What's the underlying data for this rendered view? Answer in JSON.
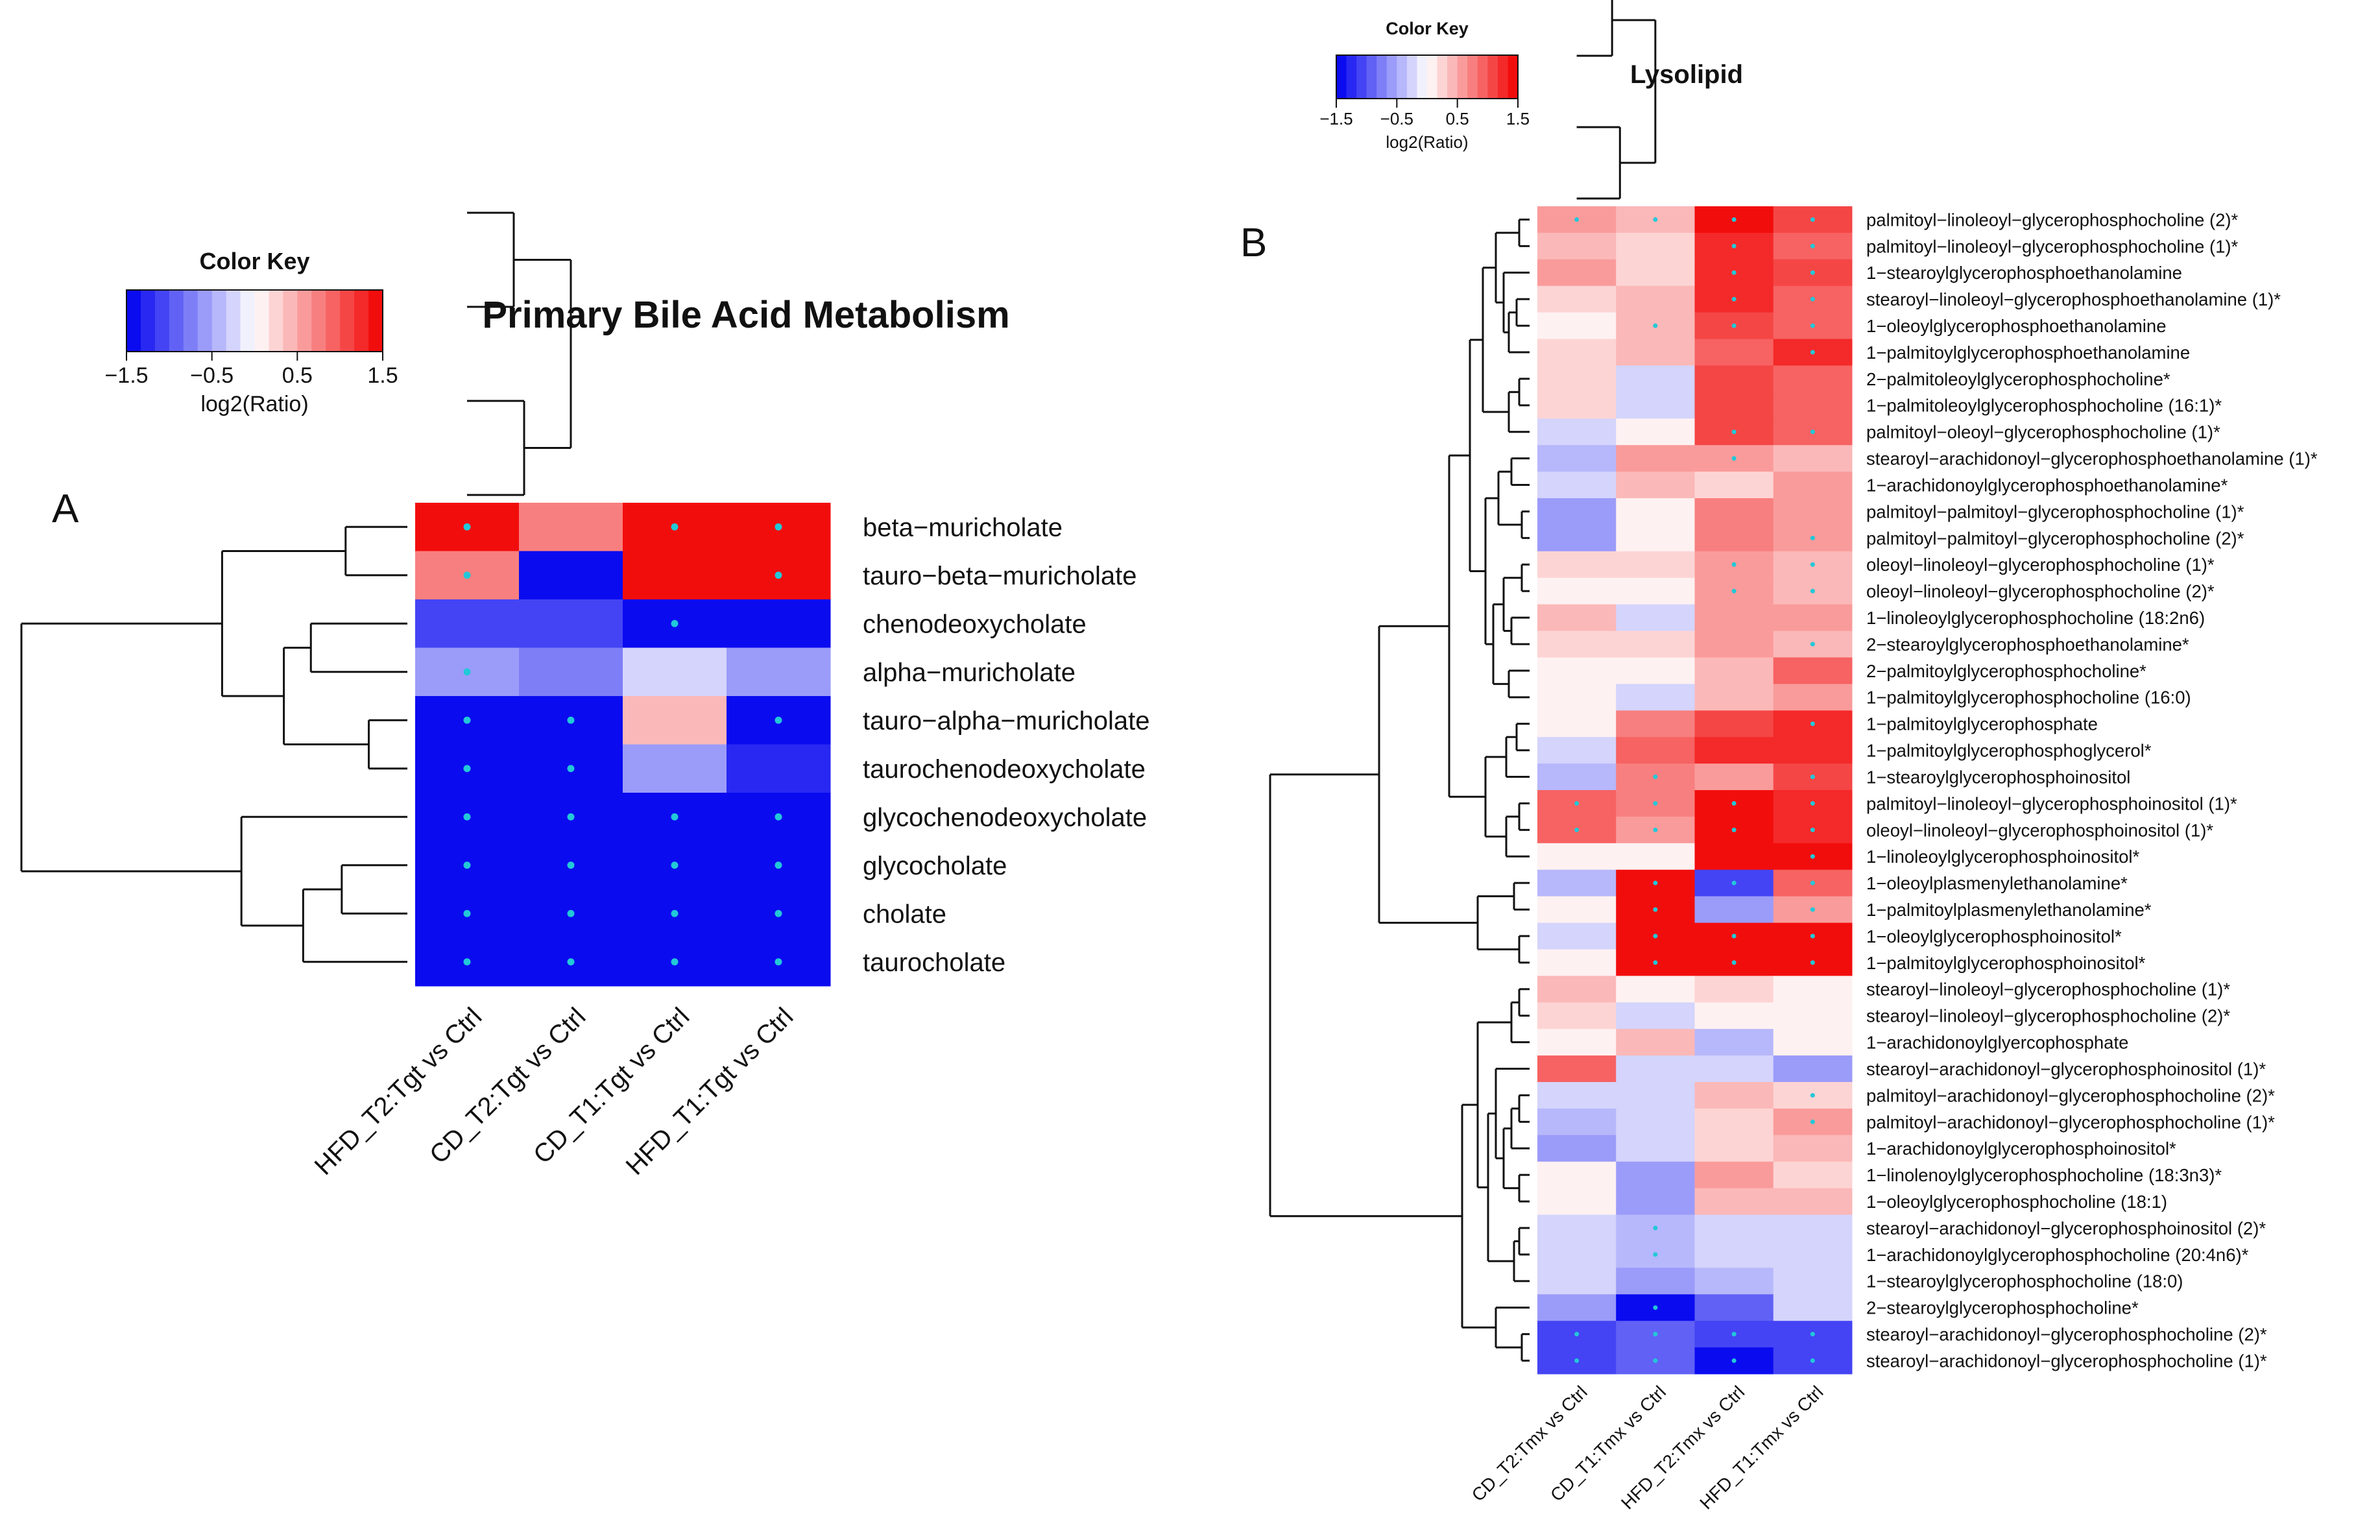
{
  "chart_data": [
    {
      "panel": "A",
      "type": "heatmap",
      "title": "Primary Bile Acid Metabolism",
      "color_key": {
        "title": "Color Key",
        "label": "log2(Ratio)",
        "ticks": [
          "−1.5",
          "−0.5",
          "0.5",
          "1.5"
        ],
        "range": [
          -1.5,
          1.5
        ]
      },
      "columns": [
        "HFD_T2:Tgt vs Ctrl",
        "CD_T2:Tgt vs Ctrl",
        "CD_T1:Tgt vs Ctrl",
        "HFD_T1:Tgt vs Ctrl"
      ],
      "rows": [
        "beta−muricholate",
        "tauro−beta−muricholate",
        "chenodeoxycholate",
        "alpha−muricholate",
        "tauro−alpha−muricholate",
        "taurochenodeoxycholate",
        "glycochenodeoxycholate",
        "glycocholate",
        "cholate",
        "taurocholate"
      ],
      "values": [
        [
          1.5,
          0.8,
          1.5,
          1.5
        ],
        [
          0.8,
          -1.5,
          1.5,
          1.5
        ],
        [
          -1.1,
          -1.1,
          -1.5,
          -1.5
        ],
        [
          -0.6,
          -0.8,
          -0.2,
          -0.6
        ],
        [
          -1.5,
          -1.5,
          0.5,
          -1.5
        ],
        [
          -1.5,
          -1.5,
          -0.6,
          -1.3
        ],
        [
          -1.5,
          -1.5,
          -1.5,
          -1.5
        ],
        [
          -1.5,
          -1.5,
          -1.5,
          -1.5
        ],
        [
          -1.5,
          -1.5,
          -1.5,
          -1.5
        ],
        [
          -1.5,
          -1.5,
          -1.5,
          -1.5
        ]
      ],
      "significant": [
        [
          1,
          0,
          1,
          1
        ],
        [
          1,
          0,
          0,
          1
        ],
        [
          0,
          0,
          1,
          0
        ],
        [
          1,
          0,
          0,
          0
        ],
        [
          1,
          1,
          0,
          1
        ],
        [
          1,
          1,
          0,
          0
        ],
        [
          1,
          1,
          1,
          1
        ],
        [
          1,
          1,
          1,
          1
        ],
        [
          1,
          1,
          1,
          1
        ],
        [
          1,
          1,
          1,
          1
        ]
      ]
    },
    {
      "panel": "B",
      "type": "heatmap",
      "title": "Lysolipid",
      "color_key": {
        "title": "Color Key",
        "label": "log2(Ratio)",
        "ticks": [
          "−1.5",
          "−0.5",
          "0.5",
          "1.5"
        ],
        "range": [
          -1.5,
          1.5
        ]
      },
      "columns": [
        "CD_T2:Tmx vs Ctrl",
        "CD_T1:Tmx vs Ctrl",
        "HFD_T2:Tmx vs Ctrl",
        "HFD_T1:Tmx vs Ctrl"
      ],
      "rows": [
        "palmitoyl−linoleoyl−glycerophosphocholine (2)*",
        "palmitoyl−linoleoyl−glycerophosphocholine (1)*",
        "1−stearoylglycerophosphoethanolamine",
        "stearoyl−linoleoyl−glycerophosphoethanolamine (1)*",
        "1−oleoylglycerophosphoethanolamine",
        "1−palmitoylglycerophosphoethanolamine",
        "2−palmitoleoylglycerophosphocholine*",
        "1−palmitoleoylglycerophosphocholine (16:1)*",
        "palmitoyl−oleoyl−glycerophosphocholine (1)*",
        "stearoyl−arachidonoyl−glycerophosphoethanolamine (1)*",
        "1−arachidonoylglycerophosphoethanolamine*",
        "palmitoyl−palmitoyl−glycerophosphocholine (1)*",
        "palmitoyl−palmitoyl−glycerophosphocholine (2)*",
        "oleoyl−linoleoyl−glycerophosphocholine (1)*",
        "oleoyl−linoleoyl−glycerophosphocholine (2)*",
        "1−linoleoylglycerophosphocholine (18:2n6)",
        "2−stearoylglycerophosphoethanolamine*",
        "2−palmitoylglycerophosphocholine*",
        "1−palmitoylglycerophosphocholine (16:0)",
        "1−palmitoylglycerophosphate",
        "1−palmitoylglycerophosphoglycerol*",
        "1−stearoylglycerophosphoinositol",
        "palmitoyl−linoleoyl−glycerophosphoinositol (1)*",
        "oleoyl−linoleoyl−glycerophosphoinositol (1)*",
        "1−linoleoylglycerophosphoinositol*",
        "1−oleoylplasmenylethanolamine*",
        "1−palmitoylplasmenylethanolamine*",
        "1−oleoylglycerophosphoinositol*",
        "1−palmitoylglycerophosphoinositol*",
        "stearoyl−linoleoyl−glycerophosphocholine (1)*",
        "stearoyl−linoleoyl−glycerophosphocholine (2)*",
        "1−arachidonoylglyercophosphate",
        "stearoyl−arachidonoyl−glycerophosphoinositol (1)*",
        "palmitoyl−arachidonoyl−glycerophosphocholine (2)*",
        "palmitoyl−arachidonoyl−glycerophosphocholine (1)*",
        "1−arachidonoylglycerophosphoinositol*",
        "1−linolenoylglycerophosphocholine (18:3n3)*",
        "1−oleoylglycerophosphocholine (18:1)",
        "stearoyl−arachidonoyl−glycerophosphoinositol (2)*",
        "1−arachidonoylglycerophosphocholine (20:4n6)*",
        "1−stearoylglycerophosphocholine (18:0)",
        "2−stearoylglycerophosphocholine*",
        "stearoyl−arachidonoyl−glycerophosphocholine (2)*",
        "stearoyl−arachidonoyl−glycerophosphocholine (1)*"
      ],
      "values": [
        [
          0.6,
          0.4,
          1.5,
          1.1
        ],
        [
          0.4,
          0.3,
          1.3,
          1.0
        ],
        [
          0.7,
          0.2,
          1.4,
          1.2
        ],
        [
          0.2,
          0.4,
          1.3,
          0.9
        ],
        [
          0.0,
          0.4,
          1.2,
          0.9
        ],
        [
          0.2,
          0.4,
          1.0,
          1.3
        ],
        [
          0.2,
          -0.2,
          1.2,
          0.9
        ],
        [
          0.2,
          -0.2,
          1.2,
          0.9
        ],
        [
          -0.3,
          0.0,
          1.2,
          0.9
        ],
        [
          -0.4,
          0.6,
          0.6,
          0.5
        ],
        [
          -0.2,
          0.5,
          0.3,
          0.6
        ],
        [
          -0.7,
          0.0,
          0.8,
          0.6
        ],
        [
          -0.7,
          0.0,
          0.8,
          0.6
        ],
        [
          0.2,
          0.2,
          0.6,
          0.5
        ],
        [
          0.1,
          0.1,
          0.6,
          0.5
        ],
        [
          0.4,
          -0.2,
          0.7,
          0.6
        ],
        [
          0.2,
          0.2,
          0.6,
          0.5
        ],
        [
          0.0,
          0.0,
          0.5,
          0.9
        ],
        [
          0.0,
          -0.2,
          0.4,
          0.7
        ],
        [
          0.0,
          0.8,
          1.1,
          1.3
        ],
        [
          -0.2,
          0.9,
          1.3,
          1.4
        ],
        [
          -0.5,
          0.8,
          0.6,
          1.2
        ],
        [
          1.0,
          0.8,
          1.5,
          1.3
        ],
        [
          1.0,
          0.7,
          1.5,
          1.3
        ],
        [
          0.0,
          0.0,
          1.5,
          1.5
        ],
        [
          -0.4,
          1.5,
          -1.2,
          1.0
        ],
        [
          0.0,
          1.5,
          -0.6,
          0.7
        ],
        [
          -0.2,
          1.5,
          1.5,
          1.5
        ],
        [
          0.0,
          1.5,
          1.5,
          1.5
        ],
        [
          0.4,
          0.0,
          0.2,
          0.0
        ],
        [
          0.2,
          -0.2,
          0.0,
          0.0
        ],
        [
          0.0,
          0.4,
          -0.4,
          0.0
        ],
        [
          0.9,
          -0.2,
          -0.2,
          -0.6
        ],
        [
          -0.2,
          -0.2,
          0.4,
          0.2
        ],
        [
          -0.4,
          -0.2,
          0.3,
          0.7
        ],
        [
          -0.6,
          -0.3,
          0.3,
          0.5
        ],
        [
          0.0,
          -0.6,
          0.7,
          0.3
        ],
        [
          0.0,
          -0.6,
          0.5,
          0.4
        ],
        [
          -0.2,
          -0.4,
          -0.2,
          -0.2
        ],
        [
          -0.2,
          -0.4,
          -0.3,
          -0.2
        ],
        [
          -0.3,
          -0.6,
          -0.4,
          -0.2
        ],
        [
          -0.6,
          -1.5,
          -0.9,
          -0.2
        ],
        [
          -1.1,
          -1.0,
          -1.1,
          -1.2
        ],
        [
          -1.1,
          -1.0,
          -1.5,
          -1.2
        ]
      ],
      "significant": [
        [
          1,
          1,
          1,
          1
        ],
        [
          0,
          0,
          1,
          1
        ],
        [
          0,
          0,
          1,
          1
        ],
        [
          0,
          0,
          1,
          1
        ],
        [
          0,
          1,
          1,
          1
        ],
        [
          0,
          0,
          0,
          1
        ],
        [
          0,
          0,
          0,
          0
        ],
        [
          0,
          0,
          0,
          0
        ],
        [
          0,
          0,
          1,
          1
        ],
        [
          0,
          0,
          1,
          0
        ],
        [
          0,
          0,
          0,
          0
        ],
        [
          0,
          0,
          0,
          0
        ],
        [
          0,
          0,
          0,
          1
        ],
        [
          0,
          0,
          1,
          1
        ],
        [
          0,
          0,
          1,
          1
        ],
        [
          0,
          0,
          0,
          0
        ],
        [
          0,
          0,
          0,
          1
        ],
        [
          0,
          0,
          0,
          0
        ],
        [
          0,
          0,
          0,
          0
        ],
        [
          0,
          0,
          0,
          1
        ],
        [
          0,
          0,
          0,
          0
        ],
        [
          0,
          1,
          0,
          1
        ],
        [
          1,
          1,
          1,
          1
        ],
        [
          1,
          1,
          1,
          1
        ],
        [
          0,
          0,
          0,
          1
        ],
        [
          0,
          1,
          1,
          1
        ],
        [
          0,
          1,
          0,
          1
        ],
        [
          0,
          1,
          1,
          1
        ],
        [
          0,
          1,
          1,
          1
        ],
        [
          0,
          0,
          0,
          0
        ],
        [
          0,
          0,
          0,
          0
        ],
        [
          0,
          0,
          0,
          0
        ],
        [
          0,
          0,
          0,
          0
        ],
        [
          0,
          0,
          0,
          1
        ],
        [
          0,
          0,
          0,
          1
        ],
        [
          0,
          0,
          0,
          0
        ],
        [
          0,
          0,
          0,
          0
        ],
        [
          0,
          0,
          0,
          0
        ],
        [
          0,
          1,
          0,
          0
        ],
        [
          0,
          1,
          0,
          0
        ],
        [
          0,
          0,
          0,
          0
        ],
        [
          0,
          1,
          0,
          0
        ],
        [
          1,
          1,
          1,
          1
        ],
        [
          1,
          1,
          1,
          1
        ]
      ]
    }
  ],
  "figure": {
    "panel_a_letter": "A",
    "panel_b_letter": "B",
    "colors": {
      "low": "#0b0bf0",
      "mid": "#ffffff",
      "high": "#f20d0d",
      "significance_dot": "#22c8d8",
      "dendrogram": "#111111"
    }
  }
}
